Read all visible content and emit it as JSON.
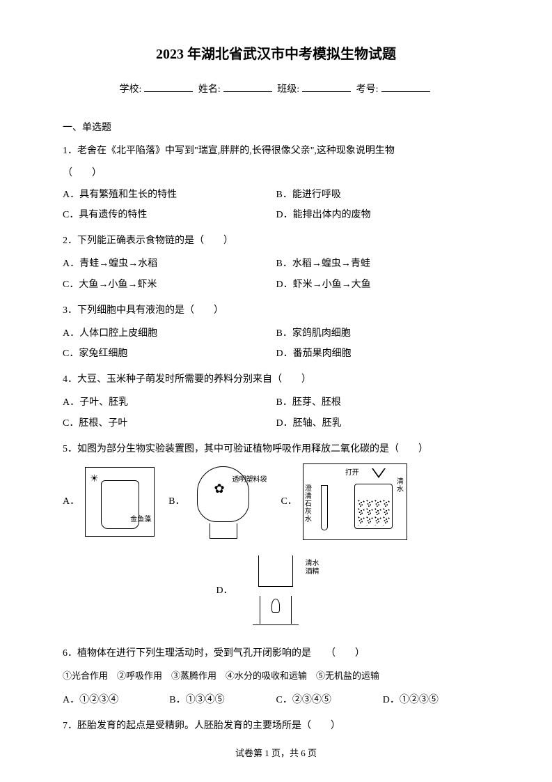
{
  "title": "2023 年湖北省武汉市中考模拟生物试题",
  "info": {
    "school_label": "学校:",
    "name_label": "姓名:",
    "class_label": "班级:",
    "examno_label": "考号:"
  },
  "section1_header": "一、单选题",
  "q1": {
    "text_before": "1．老舍在《北平陷落》中写到\"瑞宣,胖胖的,长得很像父亲\",这种现象说明生物",
    "paren": "（　　）",
    "a": "A．具有繁殖和生长的特性",
    "b": "B．能进行呼吸",
    "c": "C．具有遗传的特性",
    "d": "D．能排出体内的废物"
  },
  "q2": {
    "text": "2．下列能正确表示食物链的是（　　）",
    "a": "A．青蛙→蝗虫→水稻",
    "b": "B．水稻→蝗虫→青蛙",
    "c": "C．大鱼→小鱼→虾米",
    "d": "D．虾米→小鱼→大鱼"
  },
  "q3": {
    "text": "3．下列细胞中具有液泡的是（　　）",
    "a": "A．人体口腔上皮细胞",
    "b": "B．家鸽肌肉细胞",
    "c": "C．家兔红细胞",
    "d": "D．番茄果肉细胞"
  },
  "q4": {
    "text": "4．大豆、玉米种子萌发时所需要的养料分别来自（　　）",
    "a": "A．子叶、胚乳",
    "b": "B．胚芽、胚根",
    "c": "C．胚根、子叶",
    "d": "D．胚轴、胚乳"
  },
  "q5": {
    "text": "5．如图为部分生物实验装置图，其中可验证植物呼吸作用释放二氧化碳的是（　　）",
    "label_a": "A．",
    "label_b": "B．",
    "label_c": "C．",
    "label_d": "D．",
    "diagram_a_label": "金鱼藻",
    "diagram_b_label": "透明塑料袋",
    "diagram_c_left": "澄清石灰水",
    "diagram_c_top": "打开",
    "diagram_c_right": "清水",
    "diagram_d_label1": "清水",
    "diagram_d_label2": "酒精"
  },
  "q6": {
    "text": "6．植物体在进行下列生理活动时，受到气孔开闭影响的是　　（　　）",
    "items": "①光合作用　②呼吸作用　③蒸腾作用　④水分的吸收和运输　⑤无机盐的运输",
    "a": "A．①②③④",
    "b": "B．①③④⑤",
    "c": "C．②③④⑤",
    "d": "D．①②③⑤"
  },
  "q7": {
    "text": "7．胚胎发育的起点是受精卵。人胚胎发育的主要场所是（　　）"
  },
  "footer": "试卷第 1 页，共 6 页",
  "colors": {
    "text": "#000000",
    "background": "#ffffff",
    "border": "#000000"
  }
}
